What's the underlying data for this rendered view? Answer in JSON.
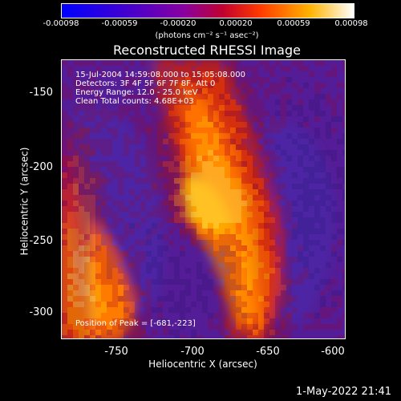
{
  "colorbar": {
    "ticks": [
      "-0.00098",
      "-0.00059",
      "-0.00020",
      "0.00020",
      "0.00059",
      "0.00098"
    ],
    "units": "(photons cm⁻² s⁻¹ asec⁻²)",
    "range": [
      -0.00098,
      0.00098
    ]
  },
  "info": {
    "time": "15-Jul-2004 14:59:08.000 to 15:05:08.000",
    "detectors": "Detectors: 3F 4F 5F 6F 7F 8F, Att 0",
    "energy": "Energy Range: 12.0 - 25.0 keV",
    "clean": "Clean     Total counts: 4.68E+03",
    "peak": "Position of Peak = [-681,-223]"
  },
  "timestamp": "1-May-2022 21:41",
  "chart_data": {
    "type": "heatmap",
    "title": "Reconstructed RHESSI Image",
    "xlabel": "Heliocentric X (arcsec)",
    "ylabel": "Heliocentric Y (arcsec)",
    "xlim": [
      -775,
      -590
    ],
    "ylim": [
      -320,
      -137
    ],
    "xticks": [
      -750,
      -700,
      -650,
      -600
    ],
    "yticks": [
      -150,
      -200,
      -250,
      -300
    ],
    "peak": [
      -681,
      -223
    ],
    "colormap": [
      "#0000ff",
      "#5a00c0",
      "#a00040",
      "#ff3000",
      "#ffb000",
      "#ffffff"
    ]
  }
}
